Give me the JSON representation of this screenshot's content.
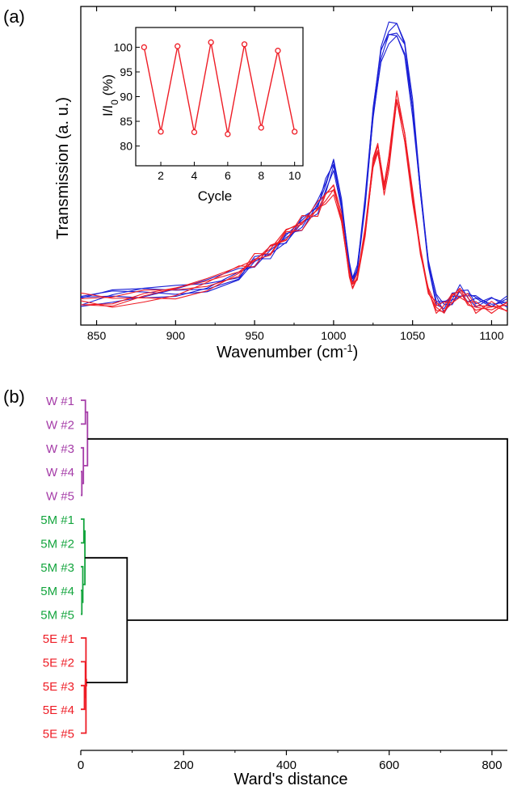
{
  "panel_labels": {
    "a": "(a)",
    "b": "(b)"
  },
  "colors": {
    "red": "#ee1c25",
    "blue": "#1b20d6",
    "purple": "#a53ca8",
    "green": "#14a53e",
    "black": "#000000"
  },
  "chart_data": [
    {
      "id": "spectrum",
      "type": "line",
      "xlabel_main": "Wavenumber (cm",
      "xlabel_sup": "-1",
      "xlabel_end": ")",
      "ylabel": "Transmission (a. u.)",
      "xlim": [
        840,
        1110
      ],
      "xticks": [
        850,
        900,
        950,
        1000,
        1050,
        1100
      ],
      "y_ticks_shown": false,
      "series": [
        {
          "color": "#1b20d6",
          "x": [
            840,
            860,
            880,
            900,
            920,
            940,
            950,
            960,
            970,
            980,
            990,
            995,
            1000,
            1005,
            1010,
            1012,
            1015,
            1020,
            1025,
            1030,
            1035,
            1040,
            1045,
            1050,
            1055,
            1060,
            1065,
            1070,
            1075,
            1080,
            1085,
            1090,
            1100,
            1110
          ],
          "y": [
            0.02,
            0.04,
            0.05,
            0.06,
            0.08,
            0.12,
            0.16,
            0.2,
            0.25,
            0.3,
            0.37,
            0.44,
            0.52,
            0.37,
            0.15,
            0.1,
            0.14,
            0.38,
            0.7,
            0.92,
            0.99,
            1.0,
            0.94,
            0.72,
            0.42,
            0.16,
            0.03,
            0.0,
            0.03,
            0.06,
            0.04,
            0.02,
            0.02,
            0.02
          ]
        },
        {
          "color": "#ee1c25",
          "x": [
            840,
            860,
            880,
            900,
            920,
            940,
            950,
            960,
            970,
            980,
            990,
            995,
            1000,
            1005,
            1010,
            1012,
            1015,
            1020,
            1025,
            1028,
            1032,
            1035,
            1040,
            1045,
            1050,
            1055,
            1060,
            1065,
            1070,
            1075,
            1080,
            1085,
            1090,
            1100,
            1110
          ],
          "y": [
            0.03,
            0.02,
            0.04,
            0.05,
            0.08,
            0.13,
            0.17,
            0.21,
            0.26,
            0.31,
            0.35,
            0.4,
            0.43,
            0.32,
            0.12,
            0.08,
            0.11,
            0.27,
            0.52,
            0.58,
            0.43,
            0.52,
            0.76,
            0.62,
            0.4,
            0.2,
            0.06,
            0.0,
            0.0,
            0.03,
            0.05,
            0.03,
            0.0,
            0.0,
            0.0
          ]
        }
      ]
    },
    {
      "id": "inset",
      "type": "line",
      "xlabel": "Cycle",
      "ylabel_main": "I/I",
      "ylabel_sub": "0",
      "ylabel_end": " (%)",
      "xlim": [
        0.5,
        10.5
      ],
      "ylim": [
        76,
        104
      ],
      "xticks": [
        2,
        4,
        6,
        8,
        10
      ],
      "yticks": [
        80,
        85,
        90,
        95,
        100
      ],
      "color": "#ee1c25",
      "x": [
        1,
        2,
        3,
        4,
        5,
        6,
        7,
        8,
        9,
        10
      ],
      "y": [
        100.0,
        82.9,
        100.2,
        82.8,
        101.0,
        82.4,
        100.6,
        83.7,
        99.3,
        82.9
      ]
    },
    {
      "id": "dendrogram",
      "type": "dendrogram",
      "xlabel": "Ward's distance",
      "xlim": [
        0,
        830
      ],
      "xticks": [
        0,
        200,
        400,
        600,
        800
      ],
      "leaves": [
        {
          "label": "W #1",
          "color": "#a53ca8"
        },
        {
          "label": "W #2",
          "color": "#a53ca8"
        },
        {
          "label": "W #3",
          "color": "#a53ca8"
        },
        {
          "label": "W #4",
          "color": "#a53ca8"
        },
        {
          "label": "W #5",
          "color": "#a53ca8"
        },
        {
          "label": "5M #1",
          "color": "#14a53e"
        },
        {
          "label": "5M #2",
          "color": "#14a53e"
        },
        {
          "label": "5M #3",
          "color": "#14a53e"
        },
        {
          "label": "5M #4",
          "color": "#14a53e"
        },
        {
          "label": "5M #5",
          "color": "#14a53e"
        },
        {
          "label": "5E #1",
          "color": "#ee1c25"
        },
        {
          "label": "5E #2",
          "color": "#ee1c25"
        },
        {
          "label": "5E #3",
          "color": "#ee1c25"
        },
        {
          "label": "5E #4",
          "color": "#ee1c25"
        },
        {
          "label": "5E #5",
          "color": "#ee1c25"
        }
      ],
      "merges": [
        {
          "left": 3,
          "right": 4,
          "height": 2,
          "color": "#a53ca8"
        },
        {
          "left": 2,
          "right": 15,
          "height": 5,
          "color": "#a53ca8"
        },
        {
          "left": 0,
          "right": 1,
          "height": 9,
          "color": "#a53ca8"
        },
        {
          "left": 17,
          "right": 16,
          "height": 13,
          "color": "#a53ca8"
        },
        {
          "left": 8,
          "right": 9,
          "height": 2,
          "color": "#14a53e"
        },
        {
          "left": 7,
          "right": 19,
          "height": 4,
          "color": "#14a53e"
        },
        {
          "left": 5,
          "right": 6,
          "height": 6,
          "color": "#14a53e"
        },
        {
          "left": 21,
          "right": 20,
          "height": 8,
          "color": "#14a53e"
        },
        {
          "left": 12,
          "right": 13,
          "height": 7,
          "color": "#ee1c25"
        },
        {
          "left": 11,
          "right": 23,
          "height": 9,
          "color": "#ee1c25"
        },
        {
          "left": 10,
          "right": 14,
          "height": 10,
          "color": "#ee1c25"
        },
        {
          "left": 24,
          "right": 25,
          "height": 11,
          "color": "#ee1c25"
        },
        {
          "left": 22,
          "right": 26,
          "height": 90,
          "color": "#000000"
        },
        {
          "left": 18,
          "right": 27,
          "height": 830,
          "color": "#000000"
        }
      ]
    }
  ]
}
